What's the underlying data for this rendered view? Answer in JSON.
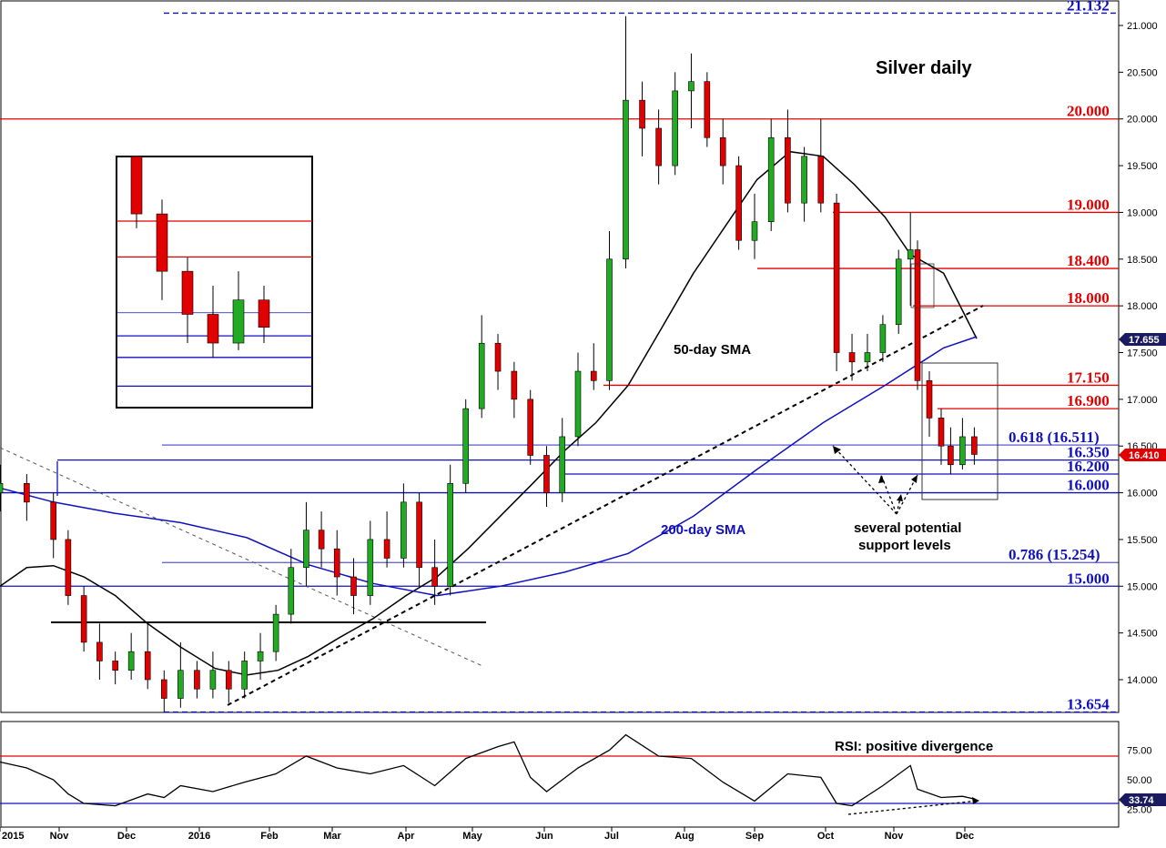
{
  "chart_data": {
    "type": "candlestick",
    "title": "Silver daily",
    "y_axis": {
      "range": [
        13.55,
        21.2
      ],
      "ticks": [
        "14.000",
        "14.500",
        "15.000",
        "15.500",
        "16.000",
        "16.500",
        "17.000",
        "17.500",
        "18.000",
        "18.500",
        "19.000",
        "19.500",
        "20.000",
        "20.500",
        "21.000"
      ]
    },
    "x_axis": {
      "ticks": [
        "2015",
        "Nov",
        "Dec",
        "2016",
        "Feb",
        "Mar",
        "Apr",
        "May",
        "Jun",
        "Jul",
        "Aug",
        "Sep",
        "Oct",
        "Nov",
        "Dec"
      ]
    },
    "current_price": {
      "label": "16.410",
      "value": 16.41,
      "color": "#e00000"
    },
    "sma_label": {
      "label": "17.655",
      "value": 17.655
    },
    "horizontal_levels": [
      {
        "label": "21.132",
        "value": 21.132,
        "color": "#1010c0",
        "style": "dashed"
      },
      {
        "label": "20.000",
        "value": 20.0,
        "color": "#e00000",
        "style": "solid"
      },
      {
        "label": "19.000",
        "value": 19.0,
        "color": "#e00000",
        "style": "solid"
      },
      {
        "label": "18.400",
        "value": 18.4,
        "color": "#e00000",
        "style": "solid"
      },
      {
        "label": "18.000",
        "value": 18.0,
        "color": "#e00000",
        "style": "solid"
      },
      {
        "label": "17.150",
        "value": 17.15,
        "color": "#e00000",
        "style": "solid"
      },
      {
        "label": "16.900",
        "value": 16.9,
        "color": "#e00000",
        "style": "solid"
      },
      {
        "label": "0.618 (16.511)",
        "value": 16.511,
        "color": "#1010c0",
        "style": "thin"
      },
      {
        "label": "16.350",
        "value": 16.35,
        "color": "#1010c0",
        "style": "solid"
      },
      {
        "label": "16.200",
        "value": 16.2,
        "color": "#1010c0",
        "style": "solid"
      },
      {
        "label": "16.000",
        "value": 16.0,
        "color": "#1010c0",
        "style": "solid"
      },
      {
        "label": "0.786 (15.254)",
        "value": 15.254,
        "color": "#1010c0",
        "style": "thin"
      },
      {
        "label": "15.000",
        "value": 15.0,
        "color": "#1010c0",
        "style": "solid"
      },
      {
        "label": "13.654",
        "value": 13.654,
        "color": "#1010c0",
        "style": "dashed"
      }
    ],
    "series": [
      {
        "name": "50-day SMA",
        "color": "#000000",
        "points": [
          [
            "2015-10-01",
            15.0
          ],
          [
            "2015-10-15",
            15.2
          ],
          [
            "2015-10-29",
            15.22
          ],
          [
            "2015-11-12",
            15.1
          ],
          [
            "2015-11-26",
            14.9
          ],
          [
            "2015-12-10",
            14.6
          ],
          [
            "2015-12-24",
            14.35
          ],
          [
            "2016-01-08",
            14.12
          ],
          [
            "2016-01-22",
            14.05
          ],
          [
            "2016-02-05",
            14.1
          ],
          [
            "2016-02-19",
            14.25
          ],
          [
            "2016-03-04",
            14.45
          ],
          [
            "2016-03-18",
            14.65
          ],
          [
            "2016-04-01",
            14.9
          ],
          [
            "2016-04-15",
            15.1
          ],
          [
            "2016-04-29",
            15.4
          ],
          [
            "2016-05-13",
            15.75
          ],
          [
            "2016-05-27",
            16.1
          ],
          [
            "2016-06-10",
            16.45
          ],
          [
            "2016-06-24",
            16.75
          ],
          [
            "2016-07-08",
            17.15
          ],
          [
            "2016-07-22",
            17.75
          ],
          [
            "2016-08-05",
            18.35
          ],
          [
            "2016-08-19",
            18.85
          ],
          [
            "2016-09-02",
            19.35
          ],
          [
            "2016-09-16",
            19.65
          ],
          [
            "2016-09-30",
            19.6
          ],
          [
            "2016-10-14",
            19.3
          ],
          [
            "2016-10-28",
            18.95
          ],
          [
            "2016-11-08",
            18.55
          ],
          [
            "2016-11-22",
            18.35
          ],
          [
            "2016-12-01",
            17.9
          ],
          [
            "2016-12-06",
            17.65
          ]
        ]
      },
      {
        "name": "200-day SMA",
        "color": "#1010c0",
        "points": [
          [
            "2015-10-01",
            16.05
          ],
          [
            "2015-10-29",
            15.9
          ],
          [
            "2015-11-26",
            15.78
          ],
          [
            "2015-12-24",
            15.68
          ],
          [
            "2016-01-22",
            15.52
          ],
          [
            "2016-02-19",
            15.23
          ],
          [
            "2016-03-18",
            15.03
          ],
          [
            "2016-04-15",
            14.9
          ],
          [
            "2016-05-13",
            15.0
          ],
          [
            "2016-06-10",
            15.15
          ],
          [
            "2016-07-08",
            15.35
          ],
          [
            "2016-08-05",
            15.75
          ],
          [
            "2016-09-02",
            16.25
          ],
          [
            "2016-09-30",
            16.75
          ],
          [
            "2016-10-28",
            17.15
          ],
          [
            "2016-11-22",
            17.55
          ],
          [
            "2016-12-06",
            17.67
          ]
        ]
      }
    ],
    "candles": [
      {
        "date": "2015-10-01",
        "o": 16.0,
        "h": 16.3,
        "l": 15.8,
        "c": 16.1
      },
      {
        "date": "2015-10-15",
        "o": 16.1,
        "h": 16.2,
        "l": 15.7,
        "c": 15.9
      },
      {
        "date": "2015-10-29",
        "o": 15.9,
        "h": 16.0,
        "l": 15.3,
        "c": 15.5
      },
      {
        "date": "2015-11-05",
        "o": 15.5,
        "h": 15.6,
        "l": 14.8,
        "c": 14.9
      },
      {
        "date": "2015-11-12",
        "o": 14.9,
        "h": 15.0,
        "l": 14.3,
        "c": 14.4
      },
      {
        "date": "2015-11-19",
        "o": 14.4,
        "h": 14.6,
        "l": 14.0,
        "c": 14.2
      },
      {
        "date": "2015-11-26",
        "o": 14.2,
        "h": 14.3,
        "l": 13.95,
        "c": 14.1
      },
      {
        "date": "2015-12-03",
        "o": 14.1,
        "h": 14.5,
        "l": 14.0,
        "c": 14.3
      },
      {
        "date": "2015-12-10",
        "o": 14.3,
        "h": 14.6,
        "l": 13.9,
        "c": 14.0
      },
      {
        "date": "2015-12-17",
        "o": 14.0,
        "h": 14.1,
        "l": 13.65,
        "c": 13.8
      },
      {
        "date": "2015-12-24",
        "o": 13.8,
        "h": 14.4,
        "l": 13.7,
        "c": 14.1
      },
      {
        "date": "2015-12-31",
        "o": 14.1,
        "h": 14.2,
        "l": 13.8,
        "c": 13.9
      },
      {
        "date": "2016-01-07",
        "o": 13.9,
        "h": 14.3,
        "l": 13.8,
        "c": 14.1
      },
      {
        "date": "2016-01-14",
        "o": 14.1,
        "h": 14.2,
        "l": 13.75,
        "c": 13.9
      },
      {
        "date": "2016-01-21",
        "o": 13.9,
        "h": 14.3,
        "l": 13.8,
        "c": 14.2
      },
      {
        "date": "2016-01-28",
        "o": 14.2,
        "h": 14.5,
        "l": 14.0,
        "c": 14.3
      },
      {
        "date": "2016-02-04",
        "o": 14.3,
        "h": 14.8,
        "l": 14.2,
        "c": 14.7
      },
      {
        "date": "2016-02-11",
        "o": 14.7,
        "h": 15.4,
        "l": 14.6,
        "c": 15.2
      },
      {
        "date": "2016-02-18",
        "o": 15.2,
        "h": 15.9,
        "l": 15.0,
        "c": 15.6
      },
      {
        "date": "2016-02-25",
        "o": 15.6,
        "h": 15.8,
        "l": 15.2,
        "c": 15.4
      },
      {
        "date": "2016-03-03",
        "o": 15.4,
        "h": 15.6,
        "l": 14.9,
        "c": 15.1
      },
      {
        "date": "2016-03-10",
        "o": 15.1,
        "h": 15.3,
        "l": 14.7,
        "c": 14.9
      },
      {
        "date": "2016-03-17",
        "o": 14.9,
        "h": 15.7,
        "l": 14.8,
        "c": 15.5
      },
      {
        "date": "2016-03-24",
        "o": 15.5,
        "h": 15.8,
        "l": 15.2,
        "c": 15.3
      },
      {
        "date": "2016-03-31",
        "o": 15.3,
        "h": 16.1,
        "l": 15.2,
        "c": 15.9
      },
      {
        "date": "2016-04-07",
        "o": 15.9,
        "h": 16.0,
        "l": 15.0,
        "c": 15.2
      },
      {
        "date": "2016-04-14",
        "o": 15.2,
        "h": 15.5,
        "l": 14.8,
        "c": 15.0
      },
      {
        "date": "2016-04-21",
        "o": 15.0,
        "h": 16.3,
        "l": 14.9,
        "c": 16.1
      },
      {
        "date": "2016-04-28",
        "o": 16.1,
        "h": 17.0,
        "l": 16.0,
        "c": 16.9
      },
      {
        "date": "2016-05-05",
        "o": 16.9,
        "h": 17.9,
        "l": 16.8,
        "c": 17.6
      },
      {
        "date": "2016-05-12",
        "o": 17.6,
        "h": 17.7,
        "l": 17.1,
        "c": 17.3
      },
      {
        "date": "2016-05-19",
        "o": 17.3,
        "h": 17.4,
        "l": 16.8,
        "c": 17.0
      },
      {
        "date": "2016-05-26",
        "o": 17.0,
        "h": 17.1,
        "l": 16.3,
        "c": 16.4
      },
      {
        "date": "2016-06-02",
        "o": 16.4,
        "h": 16.5,
        "l": 15.85,
        "c": 16.0
      },
      {
        "date": "2016-06-09",
        "o": 16.0,
        "h": 16.8,
        "l": 15.9,
        "c": 16.6
      },
      {
        "date": "2016-06-16",
        "o": 16.6,
        "h": 17.5,
        "l": 16.5,
        "c": 17.3
      },
      {
        "date": "2016-06-23",
        "o": 17.3,
        "h": 17.6,
        "l": 17.1,
        "c": 17.2
      },
      {
        "date": "2016-06-30",
        "o": 17.2,
        "h": 18.8,
        "l": 17.1,
        "c": 18.5
      },
      {
        "date": "2016-07-07",
        "o": 18.5,
        "h": 21.1,
        "l": 18.4,
        "c": 20.2
      },
      {
        "date": "2016-07-14",
        "o": 20.2,
        "h": 20.4,
        "l": 19.6,
        "c": 19.9
      },
      {
        "date": "2016-07-21",
        "o": 19.9,
        "h": 20.1,
        "l": 19.3,
        "c": 19.5
      },
      {
        "date": "2016-07-28",
        "o": 19.5,
        "h": 20.5,
        "l": 19.4,
        "c": 20.3
      },
      {
        "date": "2016-08-04",
        "o": 20.3,
        "h": 20.7,
        "l": 19.9,
        "c": 20.4
      },
      {
        "date": "2016-08-11",
        "o": 20.4,
        "h": 20.5,
        "l": 19.7,
        "c": 19.8
      },
      {
        "date": "2016-08-18",
        "o": 19.8,
        "h": 20.0,
        "l": 19.3,
        "c": 19.5
      },
      {
        "date": "2016-08-25",
        "o": 19.5,
        "h": 19.6,
        "l": 18.6,
        "c": 18.7
      },
      {
        "date": "2016-09-01",
        "o": 18.7,
        "h": 19.2,
        "l": 18.5,
        "c": 18.9
      },
      {
        "date": "2016-09-08",
        "o": 18.9,
        "h": 20.0,
        "l": 18.8,
        "c": 19.8
      },
      {
        "date": "2016-09-15",
        "o": 19.8,
        "h": 20.1,
        "l": 19.0,
        "c": 19.1
      },
      {
        "date": "2016-09-22",
        "o": 19.1,
        "h": 19.7,
        "l": 18.9,
        "c": 19.6
      },
      {
        "date": "2016-09-29",
        "o": 19.6,
        "h": 20.0,
        "l": 19.0,
        "c": 19.1
      },
      {
        "date": "2016-10-06",
        "o": 19.1,
        "h": 19.2,
        "l": 17.3,
        "c": 17.5
      },
      {
        "date": "2016-10-13",
        "o": 17.5,
        "h": 17.7,
        "l": 17.2,
        "c": 17.4
      },
      {
        "date": "2016-10-20",
        "o": 17.4,
        "h": 17.7,
        "l": 17.3,
        "c": 17.5
      },
      {
        "date": "2016-10-27",
        "o": 17.5,
        "h": 17.9,
        "l": 17.4,
        "c": 17.8
      },
      {
        "date": "2016-11-03",
        "o": 17.8,
        "h": 18.6,
        "l": 17.7,
        "c": 18.5
      },
      {
        "date": "2016-11-08",
        "o": 18.5,
        "h": 19.0,
        "l": 18.0,
        "c": 18.6
      },
      {
        "date": "2016-11-11",
        "o": 18.6,
        "h": 18.7,
        "l": 17.1,
        "c": 17.2
      },
      {
        "date": "2016-11-16",
        "o": 17.2,
        "h": 17.3,
        "l": 16.6,
        "c": 16.8
      },
      {
        "date": "2016-11-21",
        "o": 16.8,
        "h": 16.9,
        "l": 16.3,
        "c": 16.5
      },
      {
        "date": "2016-11-25",
        "o": 16.5,
        "h": 16.7,
        "l": 16.2,
        "c": 16.3
      },
      {
        "date": "2016-11-30",
        "o": 16.3,
        "h": 16.8,
        "l": 16.25,
        "c": 16.6
      },
      {
        "date": "2016-12-05",
        "o": 16.6,
        "h": 16.7,
        "l": 16.3,
        "c": 16.41
      }
    ],
    "annotations": [
      {
        "text": "Silver daily"
      },
      {
        "text": "50-day SMA"
      },
      {
        "text": "200-day SMA"
      },
      {
        "text": "several potential"
      },
      {
        "text": "support levels"
      }
    ],
    "rsi": {
      "label": "RSI: positive divergence",
      "ticks": [
        "25.00",
        "50.00",
        "75.00"
      ],
      "range": [
        15,
        95
      ],
      "current": {
        "label": "33.74",
        "value": 33.74
      },
      "levels": [
        {
          "value": 70,
          "color": "#e00000"
        },
        {
          "value": 30,
          "color": "#1010c0"
        }
      ],
      "points": [
        [
          "2015-10-01",
          65
        ],
        [
          "2015-10-15",
          60
        ],
        [
          "2015-10-29",
          50
        ],
        [
          "2015-11-05",
          38
        ],
        [
          "2015-11-12",
          30
        ],
        [
          "2015-11-26",
          28
        ],
        [
          "2015-12-10",
          38
        ],
        [
          "2015-12-17",
          35
        ],
        [
          "2015-12-24",
          45
        ],
        [
          "2016-01-07",
          40
        ],
        [
          "2016-01-21",
          48
        ],
        [
          "2016-02-04",
          55
        ],
        [
          "2016-02-18",
          70
        ],
        [
          "2016-03-03",
          60
        ],
        [
          "2016-03-17",
          55
        ],
        [
          "2016-03-31",
          62
        ],
        [
          "2016-04-14",
          45
        ],
        [
          "2016-04-28",
          68
        ],
        [
          "2016-05-12",
          78
        ],
        [
          "2016-05-19",
          82
        ],
        [
          "2016-05-26",
          52
        ],
        [
          "2016-06-02",
          40
        ],
        [
          "2016-06-16",
          60
        ],
        [
          "2016-06-30",
          75
        ],
        [
          "2016-07-07",
          88
        ],
        [
          "2016-07-21",
          70
        ],
        [
          "2016-08-04",
          68
        ],
        [
          "2016-08-18",
          48
        ],
        [
          "2016-09-01",
          32
        ],
        [
          "2016-09-15",
          55
        ],
        [
          "2016-09-29",
          52
        ],
        [
          "2016-10-06",
          30
        ],
        [
          "2016-10-13",
          28
        ],
        [
          "2016-10-27",
          45
        ],
        [
          "2016-11-08",
          62
        ],
        [
          "2016-11-11",
          42
        ],
        [
          "2016-11-21",
          35
        ],
        [
          "2016-11-30",
          36
        ],
        [
          "2016-12-05",
          33.74
        ]
      ]
    }
  }
}
